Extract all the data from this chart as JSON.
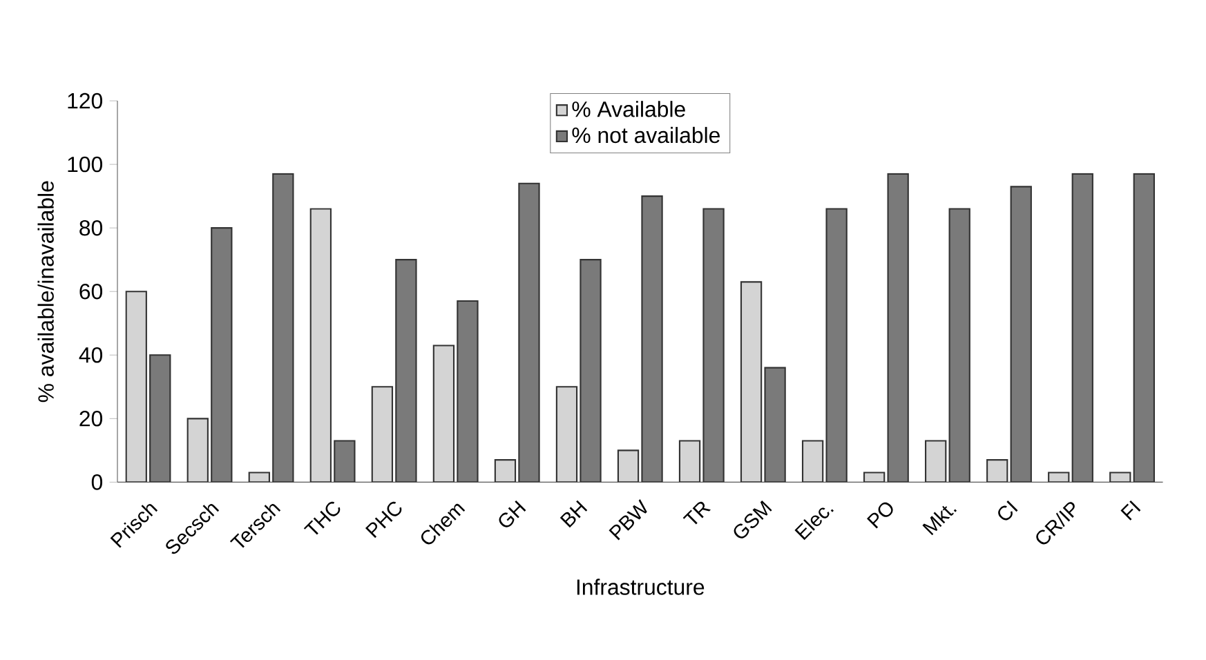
{
  "chart_data": {
    "type": "bar",
    "xlabel": "Infrastructure",
    "ylabel": "% available/inavailable",
    "categories": [
      "Prisch",
      "Secsch",
      "Tersch",
      "THC",
      "PHC",
      "Chem",
      "GH",
      "BH",
      "PBW",
      "TR",
      "GSM",
      "Elec.",
      "PO",
      "Mkt.",
      "CI",
      "CR/IP",
      "FI"
    ],
    "series": [
      {
        "name": "% Available",
        "color": "#d4d4d4",
        "values": [
          60,
          20,
          3,
          86,
          30,
          43,
          7,
          30,
          10,
          13,
          63,
          13,
          3,
          13,
          7,
          3,
          3
        ]
      },
      {
        "name": "% not available",
        "color": "#7a7a7a",
        "values": [
          40,
          80,
          97,
          13,
          70,
          57,
          94,
          70,
          90,
          86,
          36,
          86,
          97,
          86,
          93,
          97,
          97
        ]
      }
    ],
    "ylim": [
      0,
      120
    ],
    "yticks": [
      0,
      20,
      40,
      60,
      80,
      100,
      120
    ],
    "grid": false,
    "legend": "top"
  }
}
